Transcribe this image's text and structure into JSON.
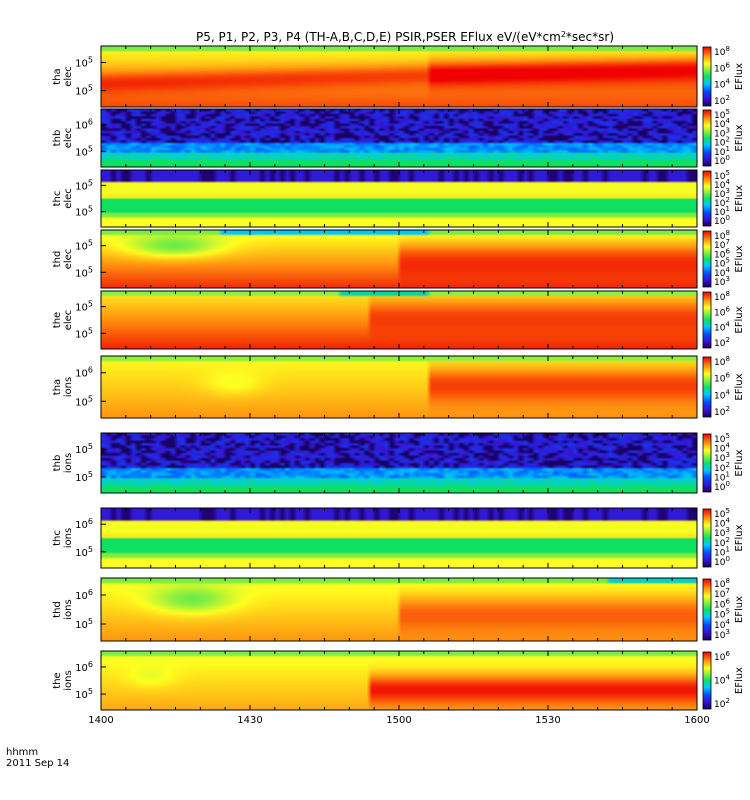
{
  "chart_data": {
    "type": "heatmap",
    "title_parts": [
      "P5, P1, P2, P3, P4  (TH-A,B,C,D,E) PSIR,PSER EFlux eV/(eV*cm",
      "2",
      "*sec*sr)"
    ],
    "x_label_line1": "hhmm",
    "x_label_line2": "2011 Sep 14",
    "x_ticks": [
      "1400",
      "1430",
      "1500",
      "1530",
      "1600"
    ],
    "x_range_hhmm": [
      "1400",
      "1600"
    ],
    "colorbar_unit": "EFlux",
    "colormap": "rainbow",
    "panels": [
      {
        "probe": "tha",
        "species": "elec",
        "yticks": [
          "5",
          "5"
        ],
        "cbticks": [
          "8",
          "6",
          "4",
          "2"
        ],
        "pattern": "tha-elec"
      },
      {
        "probe": "thb",
        "species": "elec",
        "yticks": [
          "6",
          "5"
        ],
        "cbticks": [
          "5",
          "4",
          "3",
          "2",
          "1",
          "0"
        ],
        "pattern": "thb"
      },
      {
        "probe": "thc",
        "species": "elec",
        "yticks": [
          "5",
          "5"
        ],
        "cbticks": [
          "5",
          "4",
          "3",
          "2",
          "1",
          "0"
        ],
        "pattern": "thc"
      },
      {
        "probe": "thd",
        "species": "elec",
        "yticks": [
          "5",
          "5"
        ],
        "cbticks": [
          "8",
          "7",
          "6",
          "5",
          "4",
          "3"
        ],
        "pattern": "thd-elec"
      },
      {
        "probe": "the",
        "species": "elec",
        "yticks": [
          "5",
          "5"
        ],
        "cbticks": [
          "8",
          "6",
          "4",
          "2"
        ],
        "pattern": "the-elec"
      },
      {
        "probe": "tha",
        "species": "ions",
        "yticks": [
          "6",
          "5"
        ],
        "cbticks": [
          "8",
          "6",
          "4",
          "2"
        ],
        "pattern": "tha-ions"
      },
      {
        "probe": "thb",
        "species": "ions",
        "yticks": [
          "5",
          "5"
        ],
        "cbticks": [
          "5",
          "4",
          "3",
          "2",
          "1",
          "0"
        ],
        "pattern": "thb"
      },
      {
        "probe": "thc",
        "species": "ions",
        "yticks": [
          "6",
          "5"
        ],
        "cbticks": [
          "5",
          "4",
          "3",
          "2",
          "1",
          "0"
        ],
        "pattern": "thc"
      },
      {
        "probe": "thd",
        "species": "ions",
        "yticks": [
          "6",
          "5"
        ],
        "cbticks": [
          "8",
          "7",
          "6",
          "5",
          "4",
          "3"
        ],
        "pattern": "thd-ions"
      },
      {
        "probe": "the",
        "species": "ions",
        "yticks": [
          "6",
          "5"
        ],
        "cbticks": [
          "6",
          "4",
          "2"
        ],
        "pattern": "the-ions"
      }
    ]
  }
}
